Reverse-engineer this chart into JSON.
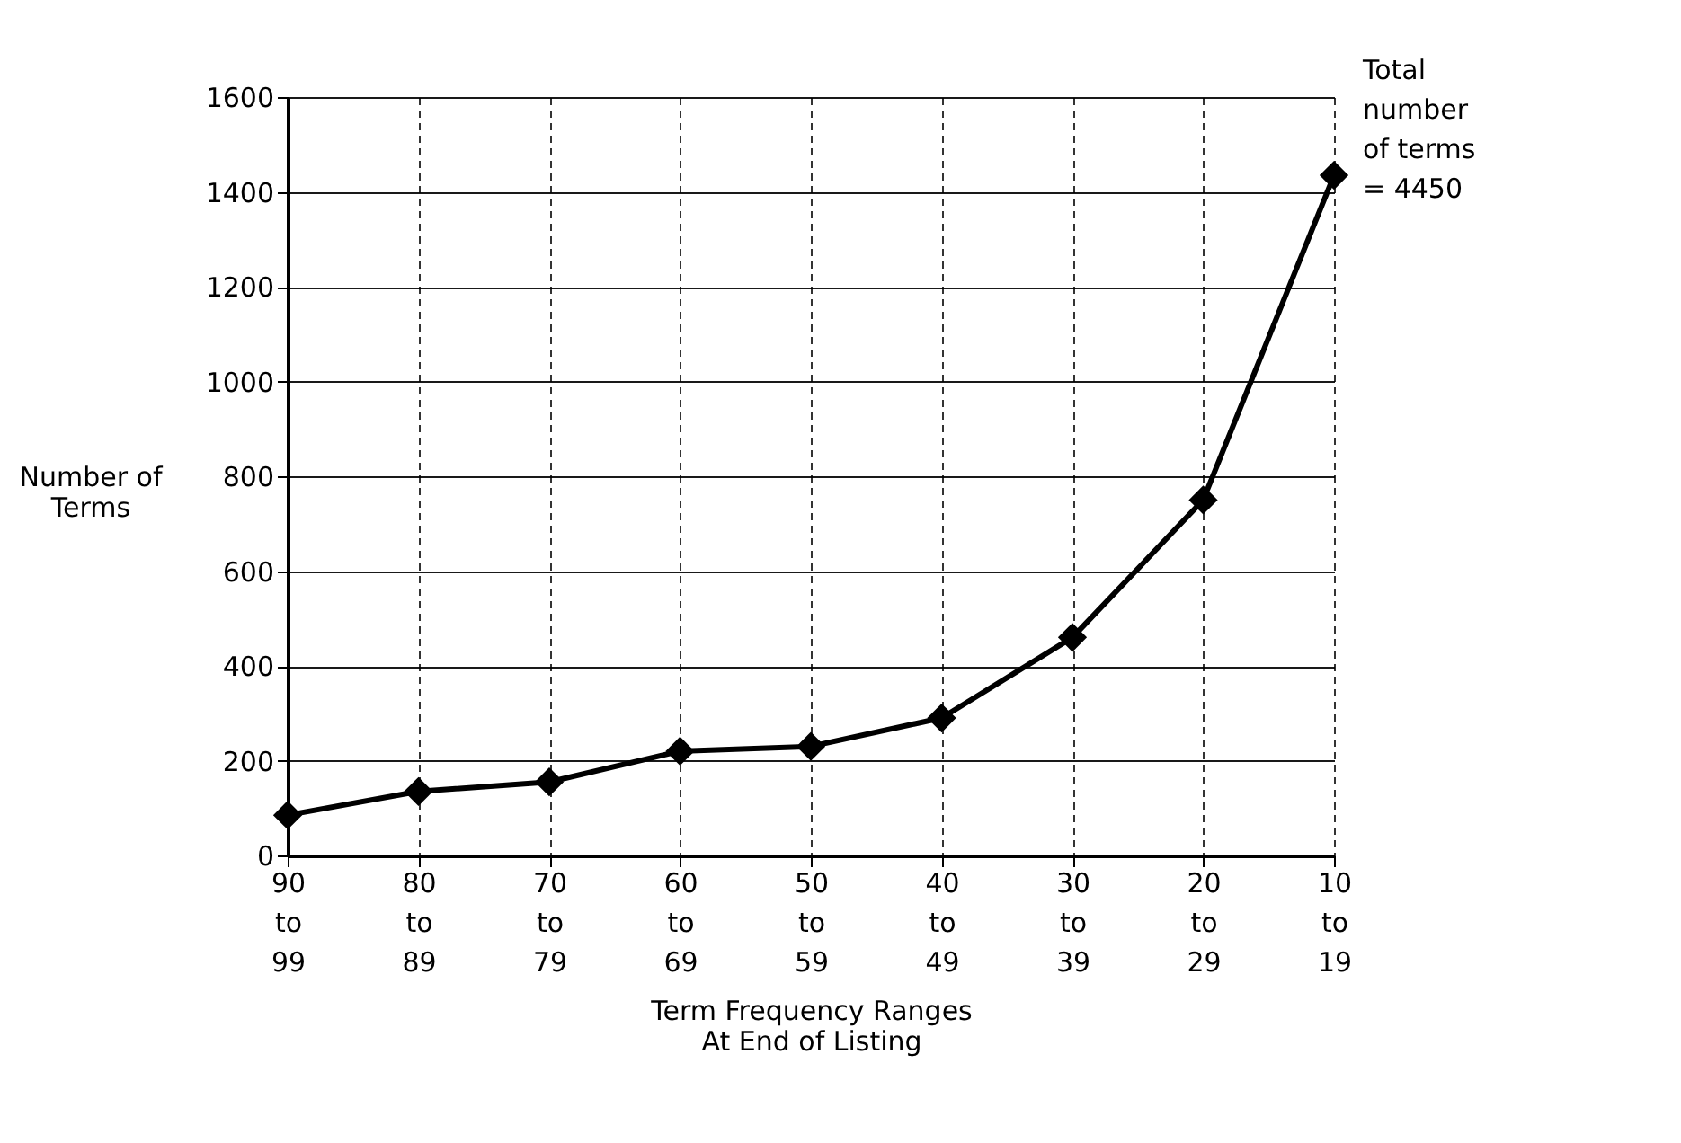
{
  "chart_data": {
    "type": "line",
    "categories": [
      "90 to 99",
      "80 to 89",
      "70 to 79",
      "60 to 69",
      "50 to 59",
      "40 to 49",
      "30 to 39",
      "20 to 29",
      "10 to 19"
    ],
    "series": [
      {
        "color": "#000000",
        "values": [
          85,
          135,
          155,
          220,
          230,
          290,
          460,
          750,
          1435
        ]
      }
    ],
    "xlabel": "Term Frequency Ranges At End of Listing",
    "ylabel": "Number of Terms",
    "annotations": [
      "Total number of terms = 4450"
    ],
    "ylim": [
      0,
      1600
    ],
    "yticks": [
      0,
      200,
      400,
      600,
      800,
      1000,
      1200,
      1400,
      1600
    ],
    "grid": true,
    "marker": "diamond",
    "line_style": "solid"
  }
}
